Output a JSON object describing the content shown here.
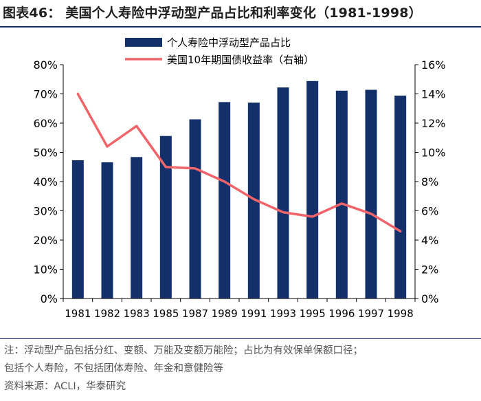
{
  "header": {
    "title": "图表46：  美国个人寿险中浮动型产品占比和利率变化（1981-1998）"
  },
  "footer": {
    "note_line1": "注：浮动型产品包括分红、变额、万能及变额万能险；占比为有效保单保额口径；",
    "note_line2": "包括个人寿险，不包括团体寿险、年金和意健险等",
    "source": "资料来源：ACLI，华泰研究"
  },
  "colors": {
    "bar": "#14306b",
    "line": "#f06469",
    "text": "#000000",
    "rule": "#14306b"
  },
  "chart_data": {
    "type": "bar",
    "categories": [
      "1981",
      "1982",
      "1983",
      "1985",
      "1987",
      "1989",
      "1991",
      "1993",
      "1995",
      "1996",
      "1997",
      "1998"
    ],
    "series": [
      {
        "name": "个人寿险中浮动型产品占比",
        "type": "bar",
        "axis": "left",
        "values": [
          47.3,
          46.6,
          48.4,
          55.6,
          61.3,
          67.2,
          67.0,
          72.2,
          74.4,
          71.1,
          71.4,
          69.4
        ]
      },
      {
        "name": "美国10年期国债收益率（右轴）",
        "type": "line",
        "axis": "right",
        "values": [
          14.0,
          10.4,
          11.8,
          9.0,
          8.9,
          8.0,
          6.8,
          5.9,
          5.6,
          6.5,
          5.8,
          4.6
        ]
      }
    ],
    "y_left": {
      "min": 0,
      "max": 80,
      "ticks": [
        "0%",
        "10%",
        "20%",
        "30%",
        "40%",
        "50%",
        "60%",
        "70%",
        "80%"
      ]
    },
    "y_right": {
      "min": 0,
      "max": 16,
      "ticks": [
        "0%",
        "2%",
        "4%",
        "6%",
        "8%",
        "10%",
        "12%",
        "14%",
        "16%"
      ]
    },
    "grid": false,
    "legend_position": "top-center"
  }
}
